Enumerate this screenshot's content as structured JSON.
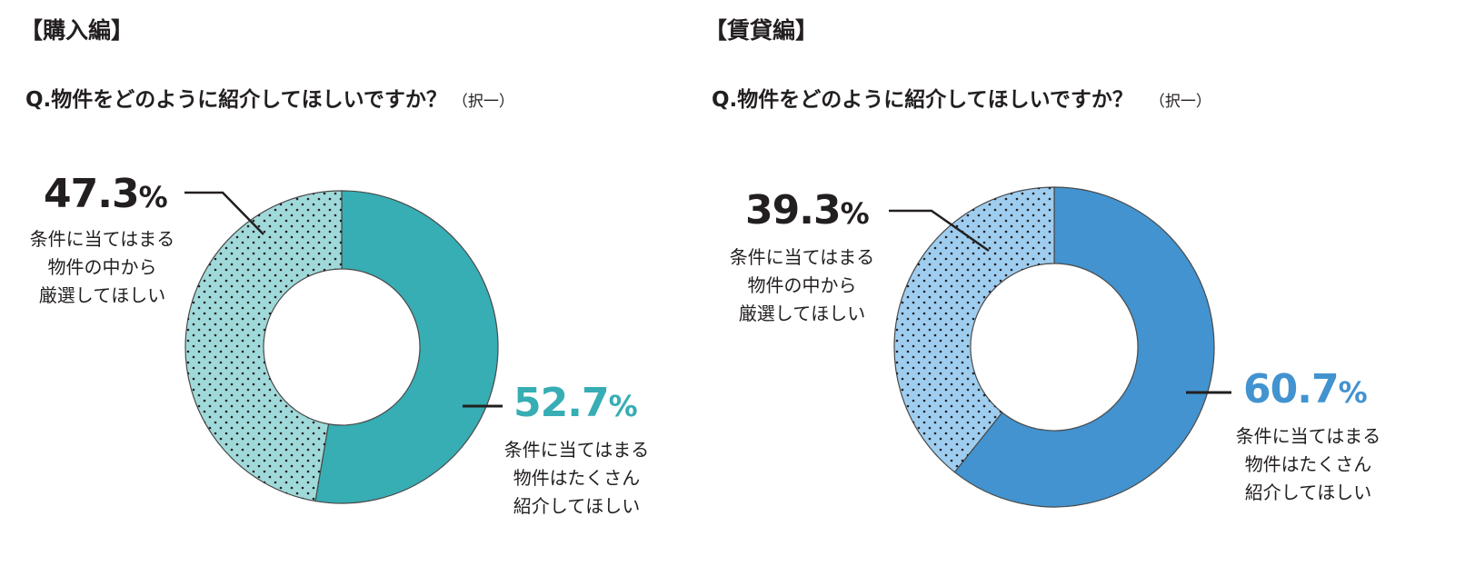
{
  "chart_data": [
    {
      "type": "pie",
      "section_title": "【購入編】",
      "title": "Q.物件をどのように紹介してほしいですか？",
      "note": "（択一）",
      "slices": [
        {
          "label": "条件に当てはまる物件はたくさん紹介してほしい",
          "label_lines": [
            "条件に当てはまる",
            "物件はたくさん",
            "紹介してほしい"
          ],
          "value": 52.7,
          "display": "52.7",
          "unit": "%",
          "color": "#37adb4",
          "pattern": "solid",
          "label_color": "#37adb4"
        },
        {
          "label": "条件に当てはまる物件の中から厳選してほしい",
          "label_lines": [
            "条件に当てはまる",
            "物件の中から",
            "厳選してほしい"
          ],
          "value": 47.3,
          "display": "47.3",
          "unit": "%",
          "color": "#a0d9d9",
          "pattern": "dotted",
          "label_color": "#231f20"
        }
      ]
    },
    {
      "type": "pie",
      "section_title": "【賃貸編】",
      "title": "Q.物件をどのように紹介してほしいですか？",
      "note": "（択一）",
      "slices": [
        {
          "label": "条件に当てはまる物件はたくさん紹介してほしい",
          "label_lines": [
            "条件に当てはまる",
            "物件はたくさん",
            "紹介してほしい"
          ],
          "value": 60.7,
          "display": "60.7",
          "unit": "%",
          "color": "#4293cf",
          "pattern": "solid",
          "label_color": "#4293cf"
        },
        {
          "label": "条件に当てはまる物件の中から厳選してほしい",
          "label_lines": [
            "条件に当てはまる",
            "物件の中から",
            "厳選してほしい"
          ],
          "value": 39.3,
          "display": "39.3",
          "unit": "%",
          "color": "#9ecdef",
          "pattern": "dotted",
          "label_color": "#231f20"
        }
      ]
    }
  ]
}
